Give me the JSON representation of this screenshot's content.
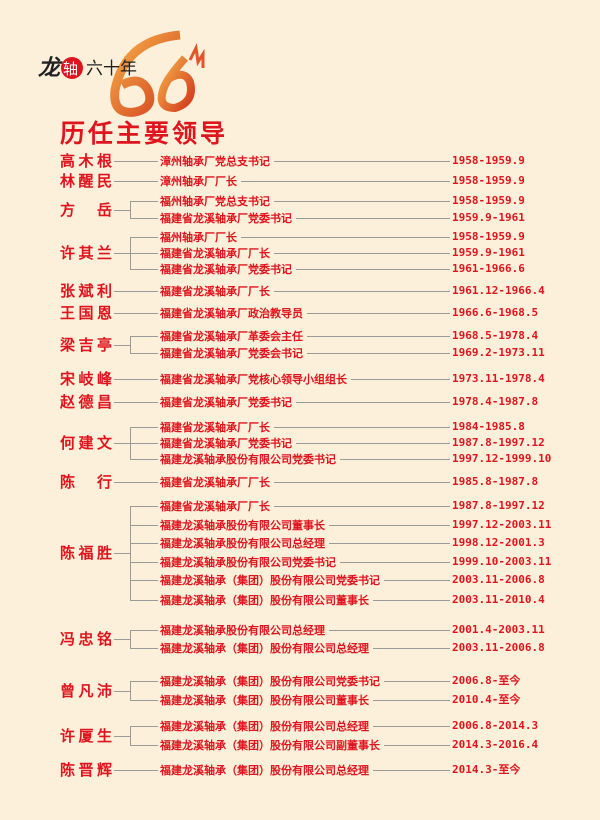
{
  "logo": {
    "text": "龙轴六十年",
    "number": "60"
  },
  "page_title": "历任主要领导",
  "colors": {
    "accent": "#e0141e",
    "background": "#fdf0da",
    "line": "#9a9a9a"
  },
  "leaders": [
    {
      "name": "高木根",
      "positions": [
        {
          "title": "漳州轴承厂党总支书记",
          "period": "1958-1959.9"
        }
      ]
    },
    {
      "name": "林醒民",
      "positions": [
        {
          "title": "漳州轴承厂厂长",
          "period": "1958-1959.9"
        }
      ]
    },
    {
      "name": "方岳",
      "positions": [
        {
          "title": "福州轴承厂党总支书记",
          "period": "1958-1959.9"
        },
        {
          "title": "福建省龙溪轴承厂党委书记",
          "period": "1959.9-1961"
        }
      ]
    },
    {
      "name": "许其兰",
      "positions": [
        {
          "title": "福州轴承厂厂长",
          "period": "1958-1959.9"
        },
        {
          "title": "福建省龙溪轴承厂厂长",
          "period": "1959.9-1961"
        },
        {
          "title": "福建省龙溪轴承厂党委书记",
          "period": "1961-1966.6"
        }
      ]
    },
    {
      "name": "张斌利",
      "positions": [
        {
          "title": "福建省龙溪轴承厂厂长",
          "period": "1961.12-1966.4"
        }
      ]
    },
    {
      "name": "王国恩",
      "positions": [
        {
          "title": "福建省龙溪轴承厂政治教导员",
          "period": "1966.6-1968.5"
        }
      ]
    },
    {
      "name": "梁吉亭",
      "positions": [
        {
          "title": "福建省龙溪轴承厂革委会主任",
          "period": "1968.5-1978.4"
        },
        {
          "title": "福建省龙溪轴承厂党委会书记",
          "period": "1969.2-1973.11"
        }
      ]
    },
    {
      "name": "宋岐峰",
      "positions": [
        {
          "title": "福建省龙溪轴承厂党核心领导小组组长",
          "period": "1973.11-1978.4"
        }
      ]
    },
    {
      "name": "赵德昌",
      "positions": [
        {
          "title": "福建省龙溪轴承厂党委书记",
          "period": "1978.4-1987.8"
        }
      ]
    },
    {
      "name": "何建文",
      "positions": [
        {
          "title": "福建省龙溪轴承厂厂长",
          "period": "1984-1985.8"
        },
        {
          "title": "福建省龙溪轴承厂党委书记",
          "period": "1987.8-1997.12"
        },
        {
          "title": "福建龙溪轴承股份有限公司党委书记",
          "period": "1997.12-1999.10"
        }
      ]
    },
    {
      "name": "陈行",
      "positions": [
        {
          "title": "福建省龙溪轴承厂厂长",
          "period": "1985.8-1987.8"
        }
      ]
    },
    {
      "name": "陈福胜",
      "positions": [
        {
          "title": "福建省龙溪轴承厂厂长",
          "period": "1987.8-1997.12"
        },
        {
          "title": "福建龙溪轴承股份有限公司董事长",
          "period": "1997.12-2003.11"
        },
        {
          "title": "福建龙溪轴承股份有限公司总经理",
          "period": "1998.12-2001.3"
        },
        {
          "title": "福建龙溪轴承股份有限公司党委书记",
          "period": "1999.10-2003.11"
        },
        {
          "title": "福建龙溪轴承（集团）股份有限公司党委书记",
          "period": "2003.11-2006.8"
        },
        {
          "title": "福建龙溪轴承（集团）股份有限公司董事长",
          "period": "2003.11-2010.4"
        }
      ]
    },
    {
      "name": "冯忠铭",
      "positions": [
        {
          "title": "福建龙溪轴承股份有限公司总经理",
          "period": "2001.4-2003.11"
        },
        {
          "title": "福建龙溪轴承（集团）股份有限公司总经理",
          "period": "2003.11-2006.8"
        }
      ]
    },
    {
      "name": "曾凡沛",
      "positions": [
        {
          "title": "福建龙溪轴承（集团）股份有限公司党委书记",
          "period": "2006.8-至今"
        },
        {
          "title": "福建龙溪轴承（集团）股份有限公司董事长",
          "period": "2010.4-至今"
        }
      ]
    },
    {
      "name": "许厦生",
      "positions": [
        {
          "title": "福建龙溪轴承（集团）股份有限公司总经理",
          "period": "2006.8-2014.3"
        },
        {
          "title": "福建龙溪轴承（集团）股份有限公司副董事长",
          "period": "2014.3-2016.4"
        }
      ]
    },
    {
      "name": "陈晋辉",
      "positions": [
        {
          "title": "福建龙溪轴承（集团）股份有限公司总经理",
          "period": "2014.3-至今"
        }
      ]
    }
  ]
}
